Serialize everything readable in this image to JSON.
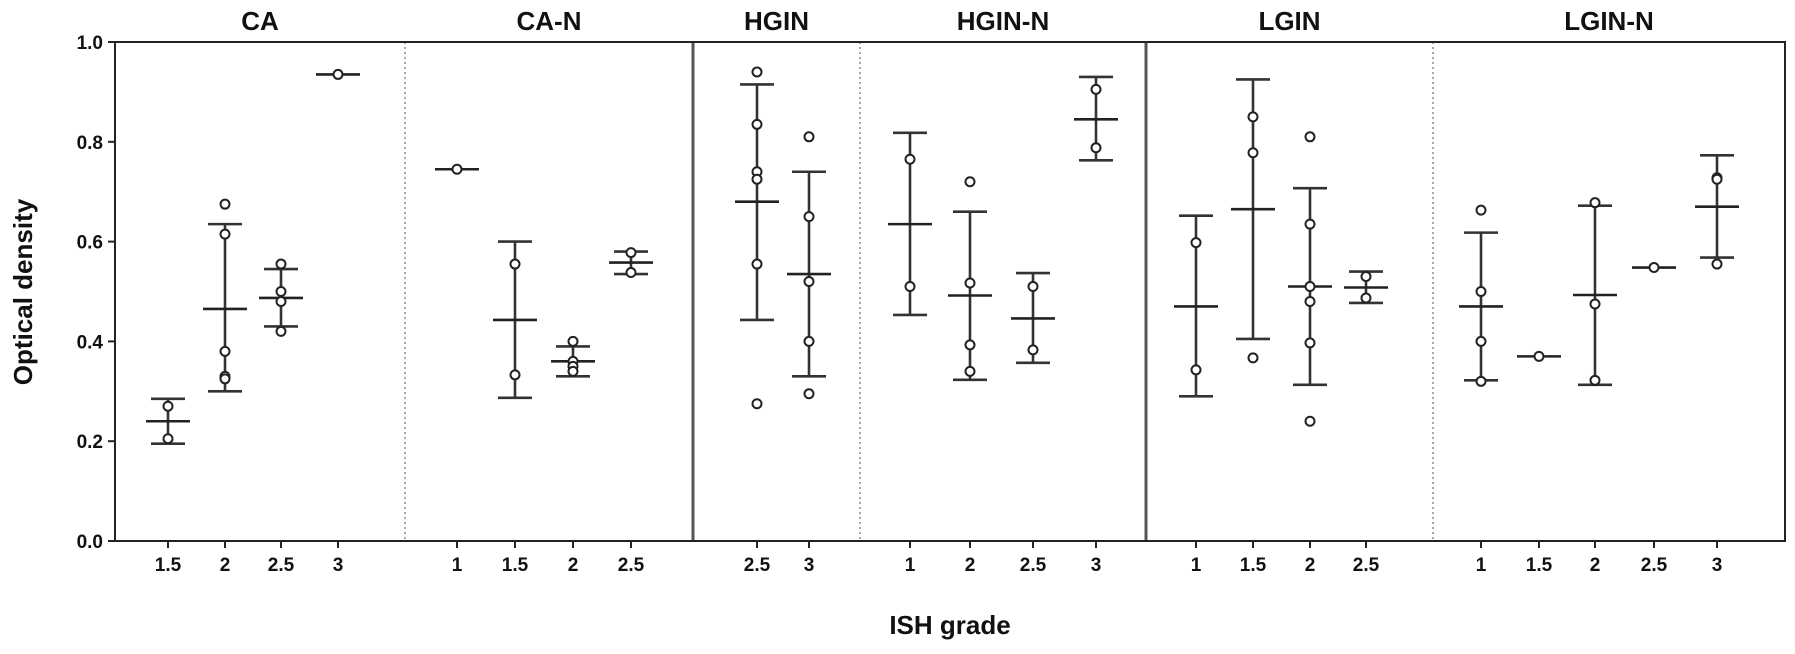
{
  "chart_data": {
    "type": "scatter",
    "xlabel": "ISH grade",
    "ylabel": "Optical density",
    "ylim": [
      0,
      1.0
    ],
    "yticks": [
      "0.0",
      "0.2",
      "0.4",
      "0.6",
      "0.8",
      "1.0"
    ],
    "grid": false,
    "panels": [
      {
        "name": "CA",
        "categories": [
          "1.5",
          "2",
          "2.5",
          "3"
        ],
        "groups": [
          {
            "grade": "1.5",
            "mean": 0.24,
            "upper": 0.285,
            "lower": 0.195,
            "points": [
              0.27,
              0.205
            ]
          },
          {
            "grade": "2",
            "mean": 0.465,
            "upper": 0.635,
            "lower": 0.3,
            "points": [
              0.675,
              0.615,
              0.38,
              0.33,
              0.325
            ]
          },
          {
            "grade": "2.5",
            "mean": 0.487,
            "upper": 0.545,
            "lower": 0.43,
            "points": [
              0.555,
              0.5,
              0.48,
              0.42
            ]
          },
          {
            "grade": "3",
            "mean": 0.935,
            "upper": 0.935,
            "lower": 0.935,
            "points": [
              0.935
            ]
          }
        ]
      },
      {
        "name": "CA-N",
        "categories": [
          "1",
          "1.5",
          "2",
          "2.5"
        ],
        "groups": [
          {
            "grade": "1",
            "mean": 0.745,
            "upper": 0.745,
            "lower": 0.745,
            "points": [
              0.745
            ]
          },
          {
            "grade": "1.5",
            "mean": 0.443,
            "upper": 0.6,
            "lower": 0.287,
            "points": [
              0.555,
              0.333
            ]
          },
          {
            "grade": "2",
            "mean": 0.36,
            "upper": 0.39,
            "lower": 0.33,
            "points": [
              0.4,
              0.36,
              0.35,
              0.34
            ]
          },
          {
            "grade": "2.5",
            "mean": 0.558,
            "upper": 0.58,
            "lower": 0.535,
            "points": [
              0.578,
              0.538
            ]
          }
        ]
      },
      {
        "name": "HGIN",
        "categories": [
          "2.5",
          "3"
        ],
        "groups": [
          {
            "grade": "2.5",
            "mean": 0.68,
            "upper": 0.915,
            "lower": 0.443,
            "points": [
              0.94,
              0.835,
              0.74,
              0.725,
              0.555,
              0.275
            ]
          },
          {
            "grade": "3",
            "mean": 0.535,
            "upper": 0.74,
            "lower": 0.33,
            "points": [
              0.81,
              0.65,
              0.52,
              0.4,
              0.295
            ]
          }
        ]
      },
      {
        "name": "HGIN-N",
        "categories": [
          "1",
          "2",
          "2.5",
          "3"
        ],
        "groups": [
          {
            "grade": "1",
            "mean": 0.635,
            "upper": 0.818,
            "lower": 0.453,
            "points": [
              0.765,
              0.51
            ]
          },
          {
            "grade": "2",
            "mean": 0.492,
            "upper": 0.66,
            "lower": 0.323,
            "points": [
              0.72,
              0.517,
              0.393,
              0.34
            ]
          },
          {
            "grade": "2.5",
            "mean": 0.446,
            "upper": 0.537,
            "lower": 0.357,
            "points": [
              0.51,
              0.383
            ]
          },
          {
            "grade": "3",
            "mean": 0.845,
            "upper": 0.93,
            "lower": 0.763,
            "points": [
              0.905,
              0.788
            ]
          }
        ]
      },
      {
        "name": "LGIN",
        "categories": [
          "1",
          "1.5",
          "2",
          "2.5"
        ],
        "groups": [
          {
            "grade": "1",
            "mean": 0.47,
            "upper": 0.652,
            "lower": 0.29,
            "points": [
              0.598,
              0.343
            ]
          },
          {
            "grade": "1.5",
            "mean": 0.665,
            "upper": 0.925,
            "lower": 0.405,
            "points": [
              0.85,
              0.778,
              0.367
            ]
          },
          {
            "grade": "2",
            "mean": 0.51,
            "upper": 0.707,
            "lower": 0.313,
            "points": [
              0.81,
              0.635,
              0.51,
              0.48,
              0.397,
              0.24
            ]
          },
          {
            "grade": "2.5",
            "mean": 0.508,
            "upper": 0.54,
            "lower": 0.477,
            "points": [
              0.53,
              0.487
            ]
          }
        ]
      },
      {
        "name": "LGIN-N",
        "categories": [
          "1",
          "1.5",
          "2",
          "2.5",
          "3"
        ],
        "groups": [
          {
            "grade": "1",
            "mean": 0.47,
            "upper": 0.618,
            "lower": 0.322,
            "points": [
              0.663,
              0.5,
              0.4,
              0.32
            ]
          },
          {
            "grade": "1.5",
            "mean": 0.37,
            "upper": 0.37,
            "lower": 0.37,
            "points": [
              0.37
            ]
          },
          {
            "grade": "2",
            "mean": 0.493,
            "upper": 0.672,
            "lower": 0.313,
            "points": [
              0.678,
              0.475,
              0.322
            ]
          },
          {
            "grade": "2.5",
            "mean": 0.548,
            "upper": 0.548,
            "lower": 0.548,
            "points": [
              0.548
            ]
          },
          {
            "grade": "3",
            "mean": 0.67,
            "upper": 0.773,
            "lower": 0.568,
            "points": [
              0.728,
              0.725,
              0.555
            ]
          }
        ]
      }
    ]
  }
}
